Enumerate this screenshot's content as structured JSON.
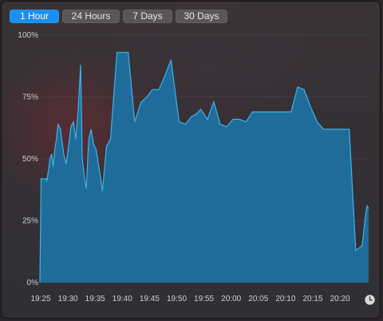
{
  "tabs": [
    {
      "label": "1 Hour",
      "active": true
    },
    {
      "label": "24 Hours",
      "active": false
    },
    {
      "label": "7 Days",
      "active": false
    },
    {
      "label": "30 Days",
      "active": false
    }
  ],
  "icons": {
    "history": "clock-icon"
  },
  "colors": {
    "accent": "#1a8ff0",
    "area_fill": "#1f6c9a",
    "area_line": "#3fb3ea"
  },
  "chart_data": {
    "type": "area",
    "title": "",
    "xlabel": "",
    "ylabel": "",
    "ylim": [
      0,
      100
    ],
    "y_ticks": [
      "0%",
      "25%",
      "50%",
      "75%",
      "100%"
    ],
    "x_ticks": [
      "19:25",
      "19:30",
      "19:35",
      "19:40",
      "19:45",
      "19:50",
      "19:55",
      "20:00",
      "20:05",
      "20:10",
      "20:15",
      "20:20"
    ],
    "x_start_minute": 19.25,
    "x_end_minute": 20.25,
    "series": [
      {
        "name": "",
        "x": [
          19.25,
          19.4,
          19.7,
          19.9,
          20.0,
          20.1,
          20.3,
          20.5,
          20.7,
          20.9,
          21.1,
          21.3,
          21.5,
          21.8,
          22.2,
          22.5,
          22.8,
          23.1,
          23.4,
          23.7,
          24.0,
          24.3,
          24.5,
          24.8,
          25.0,
          25.3,
          25.6,
          25.9,
          26.2,
          26.6,
          27.0,
          27.5,
          28.0,
          28.8,
          29.5,
          30.2,
          31.0,
          31.8,
          32.5,
          33.2,
          34.0,
          34.8,
          35.5,
          36.5,
          37.3,
          38.0,
          38.6,
          39.2,
          40.0,
          40.8,
          41.6,
          42.4,
          43.2,
          44.0,
          44.8,
          45.6,
          46.4,
          47.2,
          48.0,
          48.8,
          49.6,
          50.4,
          51.2,
          52.0,
          52.8,
          53.6,
          54.4,
          55.2,
          56.0,
          56.8,
          57.6,
          58.4,
          59.2,
          59.6,
          59.8,
          60.0
        ],
        "values": [
          0,
          42,
          42,
          42,
          42,
          41,
          45,
          50,
          52,
          47,
          54,
          58,
          64,
          62,
          52,
          48,
          55,
          63,
          65,
          58,
          70,
          88,
          50,
          42,
          38,
          58,
          62,
          56,
          54,
          46,
          37,
          55,
          58,
          93,
          93,
          93,
          65,
          73,
          75,
          78,
          78,
          84,
          90,
          65,
          64,
          67,
          68,
          70,
          66,
          73,
          64,
          63,
          66,
          66,
          65,
          69,
          69,
          69,
          69,
          69,
          69,
          69,
          79,
          78,
          71,
          65,
          62,
          62,
          62,
          62,
          62,
          13,
          15,
          27,
          31,
          30
        ]
      }
    ]
  }
}
